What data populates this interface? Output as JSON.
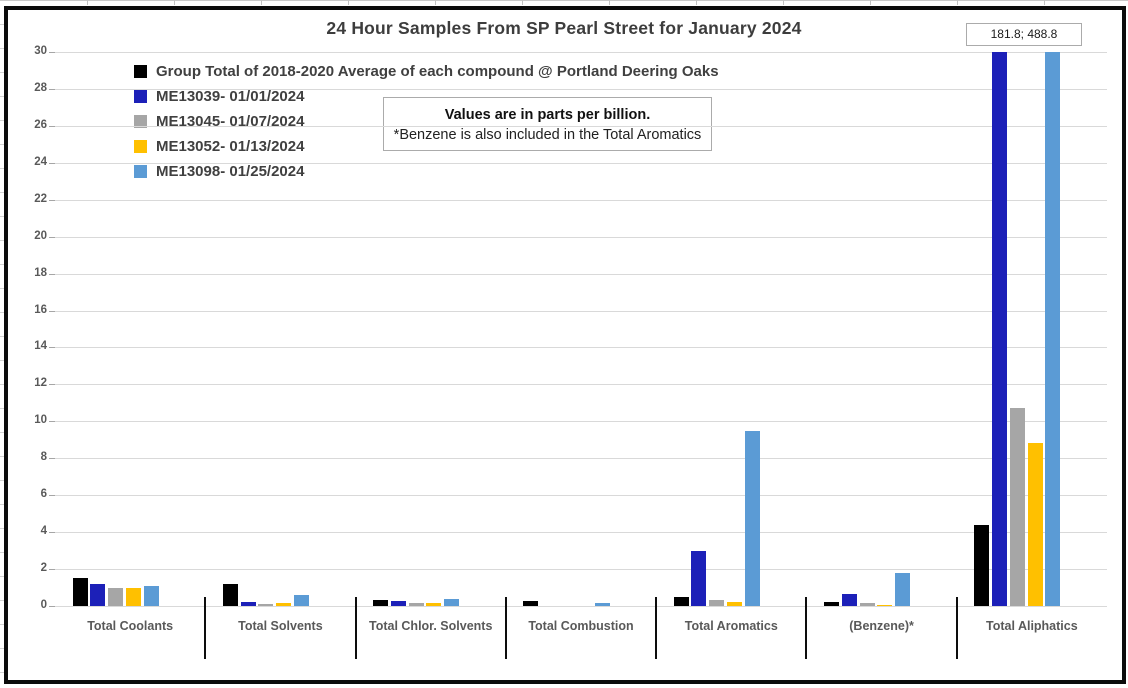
{
  "chart_data": {
    "type": "bar",
    "title": "24 Hour Samples From SP Pearl Street for January 2024",
    "note": {
      "line1": "Values are in parts per billion.",
      "line2": "*Benzene is also included in the Total Aromatics"
    },
    "clipped_values_label": "181.8;  488.8",
    "categories": [
      "Total Coolants",
      "Total Solvents",
      "Total Chlor. Solvents",
      "Total Combustion",
      "Total Aromatics",
      "(Benzene)*",
      "Total Aliphatics"
    ],
    "series": [
      {
        "name": "Group Total of 2018-2020 Average of each compound @ Portland Deering Oaks",
        "color": "#000000",
        "values": [
          1.5,
          1.2,
          0.35,
          0.25,
          0.5,
          0.2,
          4.4
        ]
      },
      {
        "name": "ME13039- 01/01/2024",
        "color": "#1c20b8",
        "values": [
          1.2,
          0.2,
          0.25,
          0,
          3.0,
          0.65,
          181.8
        ]
      },
      {
        "name": "ME13045- 01/07/2024",
        "color": "#a6a6a6",
        "values": [
          0.95,
          0.1,
          0.15,
          0,
          0.35,
          0.15,
          10.7
        ]
      },
      {
        "name": "ME13052- 01/13/2024",
        "color": "#ffc000",
        "values": [
          0.95,
          0.15,
          0.15,
          0,
          0.2,
          0.07,
          8.8
        ]
      },
      {
        "name": "ME13098- 01/25/2024",
        "color": "#5b9bd5",
        "values": [
          1.1,
          0.6,
          0.4,
          0.15,
          9.5,
          1.8,
          488.8
        ]
      }
    ],
    "ylim": [
      0,
      30
    ],
    "ytick_step": 2,
    "grid": true,
    "legend_position": "top-left"
  }
}
